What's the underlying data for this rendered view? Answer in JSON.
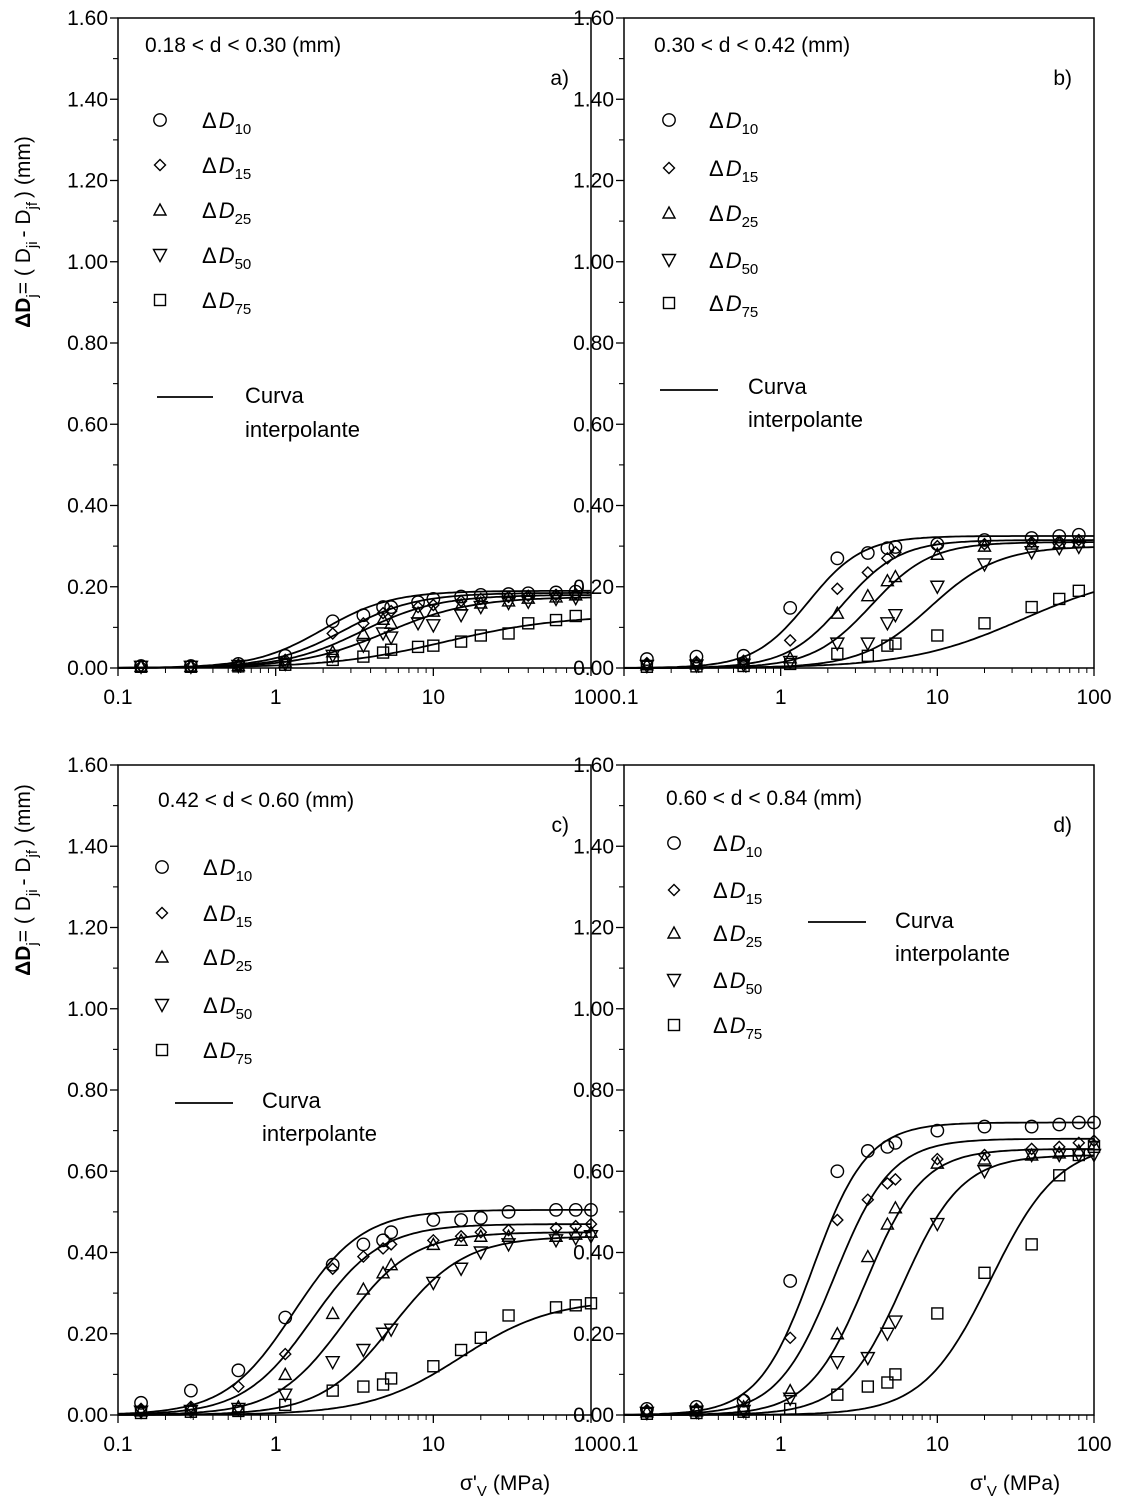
{
  "chart_data": [
    {
      "type": "scatter",
      "panel_label": "a)",
      "range_label": "0.18 < d < 0.30 (mm)",
      "xscale": "log",
      "xlim": [
        0.1,
        100
      ],
      "ylim": [
        0,
        1.6
      ],
      "yticks": [
        "0.00",
        "0.20",
        "0.40",
        "0.60",
        "0.80",
        "1.00",
        "1.20",
        "1.40",
        "1.60"
      ],
      "xticks": [
        "0.1",
        "1",
        "10",
        "100"
      ],
      "legend": [
        {
          "sym": "Δ",
          "var": "D",
          "sub": "10",
          "marker": "circle"
        },
        {
          "sym": "Δ",
          "var": "D",
          "sub": "15",
          "marker": "diamond"
        },
        {
          "sym": "Δ",
          "var": "D",
          "sub": "25",
          "marker": "triangle-up"
        },
        {
          "sym": "Δ",
          "var": "D",
          "sub": "50",
          "marker": "triangle-down"
        },
        {
          "sym": "Δ",
          "var": "D",
          "sub": "75",
          "marker": "square"
        }
      ],
      "curve_legend": [
        "Curva",
        "interpolante"
      ],
      "x": [
        0.14,
        0.29,
        0.58,
        1.15,
        2.3,
        3.6,
        4.8,
        5.4,
        8.0,
        10.0,
        15.0,
        20.0,
        30.0,
        40.0,
        60.0,
        80.0
      ],
      "series": [
        {
          "label": "D10",
          "marker": "circle",
          "values": [
            0.005,
            0.005,
            0.01,
            0.03,
            0.115,
            0.13,
            0.15,
            0.15,
            0.162,
            0.17,
            0.176,
            0.18,
            0.182,
            0.184,
            0.186,
            0.188
          ],
          "fit": [
            0.19,
            2.0,
            2.0
          ]
        },
        {
          "label": "D15",
          "marker": "diamond",
          "values": [
            0.005,
            0.005,
            0.008,
            0.02,
            0.085,
            0.11,
            0.135,
            0.14,
            0.15,
            0.155,
            0.165,
            0.17,
            0.175,
            0.178,
            0.18,
            0.182
          ],
          "fit": [
            0.185,
            2.7,
            1.9
          ]
        },
        {
          "label": "D25",
          "marker": "triangle-up",
          "values": [
            0.004,
            0.004,
            0.006,
            0.015,
            0.04,
            0.085,
            0.12,
            0.11,
            0.135,
            0.14,
            0.155,
            0.16,
            0.165,
            0.172,
            0.175,
            0.18
          ],
          "fit": [
            0.18,
            3.5,
            1.8
          ]
        },
        {
          "label": "D50",
          "marker": "triangle-down",
          "values": [
            0.003,
            0.003,
            0.005,
            0.01,
            0.03,
            0.055,
            0.085,
            0.075,
            0.11,
            0.105,
            0.13,
            0.15,
            0.16,
            0.163,
            0.17,
            0.172
          ],
          "fit": [
            0.175,
            5.0,
            1.6
          ]
        },
        {
          "label": "D75",
          "marker": "square",
          "values": [
            0.003,
            0.003,
            0.004,
            0.008,
            0.02,
            0.028,
            0.038,
            0.045,
            0.052,
            0.055,
            0.065,
            0.08,
            0.085,
            0.11,
            0.118,
            0.128
          ],
          "fit": [
            0.13,
            12.0,
            1.2
          ]
        }
      ]
    },
    {
      "type": "scatter",
      "panel_label": "b)",
      "range_label": "0.30 < d < 0.42 (mm)",
      "xscale": "log",
      "xlim": [
        0.1,
        100
      ],
      "ylim": [
        0,
        1.6
      ],
      "yticks": [
        "0.00",
        "0.20",
        "0.40",
        "0.60",
        "0.80",
        "1.00",
        "1.20",
        "1.40",
        "1.60"
      ],
      "xticks": [
        "0.1",
        "1",
        "10",
        "100"
      ],
      "legend": [
        {
          "sym": "Δ",
          "var": "D",
          "sub": "10",
          "marker": "circle"
        },
        {
          "sym": "Δ",
          "var": "D",
          "sub": "15",
          "marker": "diamond"
        },
        {
          "sym": "Δ",
          "var": "D",
          "sub": "25",
          "marker": "triangle-up"
        },
        {
          "sym": "Δ",
          "var": "D",
          "sub": "50",
          "marker": "triangle-down"
        },
        {
          "sym": "Δ",
          "var": "D",
          "sub": "75",
          "marker": "square"
        }
      ],
      "curve_legend": [
        "Curva",
        "interpolante"
      ],
      "x": [
        0.14,
        0.29,
        0.58,
        1.15,
        2.3,
        3.6,
        4.8,
        5.4,
        10.0,
        20.0,
        40.0,
        60.0,
        80.0
      ],
      "series": [
        {
          "label": "D10",
          "marker": "circle",
          "values": [
            0.022,
            0.028,
            0.03,
            0.148,
            0.27,
            0.283,
            0.295,
            0.298,
            0.305,
            0.315,
            0.32,
            0.325,
            0.328
          ],
          "fit": [
            0.325,
            1.5,
            2.5
          ]
        },
        {
          "label": "D15",
          "marker": "diamond",
          "values": [
            0.012,
            0.015,
            0.018,
            0.068,
            0.195,
            0.235,
            0.27,
            0.285,
            0.3,
            0.305,
            0.31,
            0.312,
            0.315
          ],
          "fit": [
            0.315,
            2.5,
            2.4
          ]
        },
        {
          "label": "D25",
          "marker": "triangle-up",
          "values": [
            0.008,
            0.01,
            0.012,
            0.025,
            0.135,
            0.178,
            0.215,
            0.225,
            0.28,
            0.3,
            0.305,
            0.308,
            0.31
          ],
          "fit": [
            0.31,
            3.8,
            2.3
          ]
        },
        {
          "label": "D50",
          "marker": "triangle-down",
          "values": [
            0.005,
            0.006,
            0.008,
            0.015,
            0.06,
            0.06,
            0.11,
            0.13,
            0.2,
            0.255,
            0.285,
            0.295,
            0.298
          ],
          "fit": [
            0.3,
            9.0,
            2.0
          ]
        },
        {
          "label": "D75",
          "marker": "square",
          "values": [
            0.003,
            0.004,
            0.005,
            0.01,
            0.035,
            0.03,
            0.055,
            0.06,
            0.08,
            0.11,
            0.15,
            0.17,
            0.19
          ],
          "fit": [
            0.24,
            35.0,
            1.2
          ]
        }
      ]
    },
    {
      "type": "scatter",
      "panel_label": "c)",
      "range_label": "0.42 < d < 0.60 (mm)",
      "xscale": "log",
      "xlim": [
        0.1,
        100
      ],
      "ylim": [
        0,
        1.6
      ],
      "yticks": [
        "0.00",
        "0.20",
        "0.40",
        "0.60",
        "0.80",
        "1.00",
        "1.20",
        "1.40",
        "1.60"
      ],
      "xticks": [
        "0.1",
        "1",
        "10",
        "100"
      ],
      "legend": [
        {
          "sym": "Δ",
          "var": "D",
          "sub": "10",
          "marker": "circle"
        },
        {
          "sym": "Δ",
          "var": "D",
          "sub": "15",
          "marker": "diamond"
        },
        {
          "sym": "Δ",
          "var": "D",
          "sub": "25",
          "marker": "triangle-up"
        },
        {
          "sym": "Δ",
          "var": "D",
          "sub": "50",
          "marker": "triangle-down"
        },
        {
          "sym": "Δ",
          "var": "D",
          "sub": "75",
          "marker": "square"
        }
      ],
      "curve_legend": [
        "Curva",
        "interpolante"
      ],
      "x": [
        0.14,
        0.29,
        0.58,
        1.15,
        2.3,
        3.6,
        4.8,
        5.4,
        10.0,
        15.0,
        20.0,
        30.0,
        60.0,
        80.0,
        100.0
      ],
      "series": [
        {
          "label": "D10",
          "marker": "circle",
          "values": [
            0.03,
            0.06,
            0.11,
            0.24,
            0.37,
            0.42,
            0.43,
            0.45,
            0.48,
            0.48,
            0.485,
            0.5,
            0.505,
            0.505,
            0.505
          ],
          "fit": [
            0.505,
            1.3,
            2.0
          ]
        },
        {
          "label": "D15",
          "marker": "diamond",
          "values": [
            0.015,
            0.02,
            0.07,
            0.15,
            0.36,
            0.39,
            0.41,
            0.42,
            0.43,
            0.44,
            0.45,
            0.455,
            0.46,
            0.465,
            0.47
          ],
          "fit": [
            0.47,
            1.7,
            2.0
          ]
        },
        {
          "label": "D25",
          "marker": "triangle-up",
          "values": [
            0.01,
            0.015,
            0.02,
            0.1,
            0.25,
            0.31,
            0.35,
            0.37,
            0.42,
            0.43,
            0.44,
            0.44,
            0.44,
            0.445,
            0.45
          ],
          "fit": [
            0.45,
            2.7,
            2.0
          ]
        },
        {
          "label": "D50",
          "marker": "triangle-down",
          "values": [
            0.008,
            0.01,
            0.015,
            0.05,
            0.13,
            0.16,
            0.2,
            0.21,
            0.325,
            0.36,
            0.4,
            0.42,
            0.43,
            0.435,
            0.44
          ],
          "fit": [
            0.44,
            5.5,
            1.9
          ]
        },
        {
          "label": "D75",
          "marker": "square",
          "values": [
            0.005,
            0.008,
            0.01,
            0.025,
            0.06,
            0.07,
            0.075,
            0.09,
            0.12,
            0.16,
            0.19,
            0.245,
            0.265,
            0.27,
            0.275
          ],
          "fit": [
            0.285,
            15.0,
            1.5
          ]
        }
      ]
    },
    {
      "type": "scatter",
      "panel_label": "d)",
      "range_label": "0.60 < d < 0.84 (mm)",
      "xscale": "log",
      "xlim": [
        0.1,
        100
      ],
      "ylim": [
        0,
        1.6
      ],
      "yticks": [
        "0.00",
        "0.20",
        "0.40",
        "0.60",
        "0.80",
        "1.00",
        "1.20",
        "1.40",
        "1.60"
      ],
      "xticks": [
        "0.1",
        "1",
        "10",
        "100"
      ],
      "legend": [
        {
          "sym": "Δ",
          "var": "D",
          "sub": "10",
          "marker": "circle"
        },
        {
          "sym": "Δ",
          "var": "D",
          "sub": "15",
          "marker": "diamond"
        },
        {
          "sym": "Δ",
          "var": "D",
          "sub": "25",
          "marker": "triangle-up"
        },
        {
          "sym": "Δ",
          "var": "D",
          "sub": "50",
          "marker": "triangle-down"
        },
        {
          "sym": "Δ",
          "var": "D",
          "sub": "75",
          "marker": "square"
        }
      ],
      "curve_legend": [
        "Curva",
        "interpolante"
      ],
      "x": [
        0.14,
        0.29,
        0.58,
        1.15,
        2.3,
        3.6,
        4.8,
        5.4,
        10.0,
        20.0,
        40.0,
        60.0,
        80.0,
        100.0
      ],
      "series": [
        {
          "label": "D10",
          "marker": "circle",
          "values": [
            0.015,
            0.02,
            0.035,
            0.33,
            0.6,
            0.65,
            0.66,
            0.67,
            0.7,
            0.71,
            0.71,
            0.715,
            0.72,
            0.72
          ],
          "fit": [
            0.72,
            1.6,
            2.5
          ]
        },
        {
          "label": "D15",
          "marker": "diamond",
          "values": [
            0.012,
            0.015,
            0.04,
            0.19,
            0.48,
            0.53,
            0.57,
            0.58,
            0.63,
            0.64,
            0.655,
            0.66,
            0.67,
            0.675
          ],
          "fit": [
            0.68,
            2.2,
            2.4
          ]
        },
        {
          "label": "D25",
          "marker": "triangle-up",
          "values": [
            0.008,
            0.01,
            0.02,
            0.06,
            0.2,
            0.39,
            0.47,
            0.51,
            0.62,
            0.63,
            0.64,
            0.645,
            0.65,
            0.665
          ],
          "fit": [
            0.655,
            3.5,
            2.4
          ]
        },
        {
          "label": "D50",
          "marker": "triangle-down",
          "values": [
            0.005,
            0.008,
            0.01,
            0.04,
            0.13,
            0.14,
            0.2,
            0.23,
            0.47,
            0.6,
            0.64,
            0.64,
            0.64,
            0.64
          ],
          "fit": [
            0.64,
            6.0,
            2.3
          ]
        },
        {
          "label": "D75",
          "marker": "square",
          "values": [
            0.003,
            0.005,
            0.008,
            0.015,
            0.05,
            0.07,
            0.08,
            0.1,
            0.25,
            0.35,
            0.42,
            0.59,
            0.64,
            0.66
          ],
          "fit": [
            0.67,
            22.0,
            2.0
          ]
        }
      ]
    }
  ],
  "axes": {
    "y_title": {
      "main": "ΔD",
      "sub_j": "j",
      "eq": "= ( D",
      "sub_ji": "ji",
      "minus": "- D",
      "sub_jf": "jf",
      "unit": ") (mm)"
    },
    "x_title": {
      "sigma": "σ'",
      "sub": "V",
      "unit": "(MPa)"
    }
  }
}
